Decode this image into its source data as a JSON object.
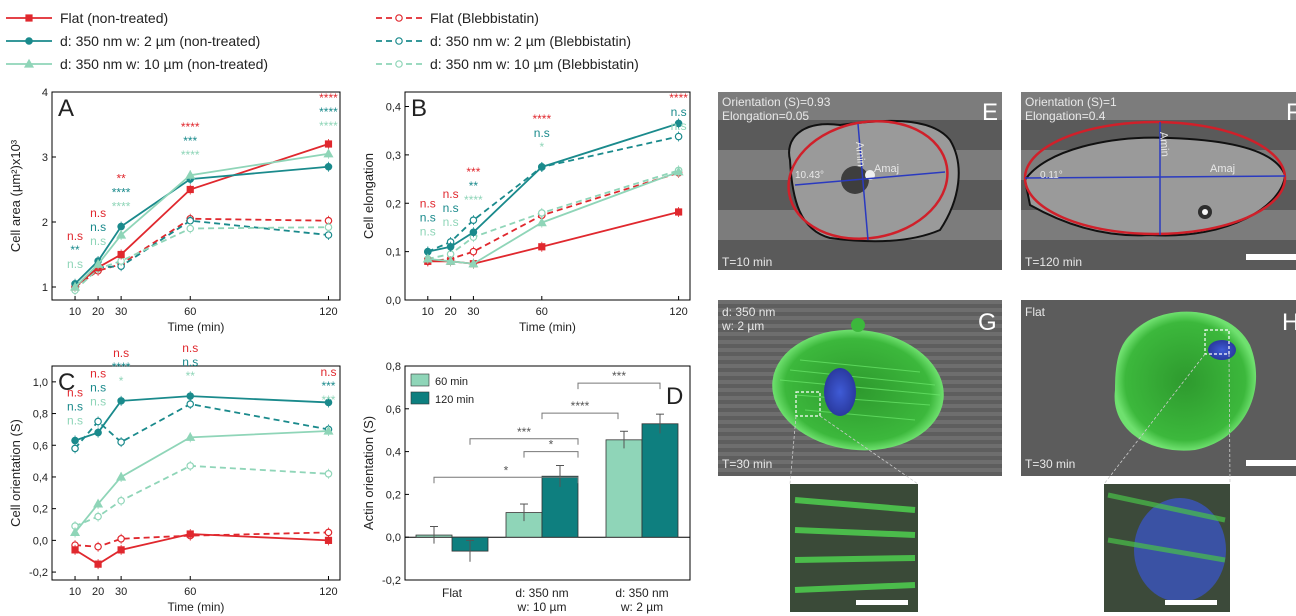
{
  "legend": {
    "entries": [
      {
        "label": "Flat (non-treated)",
        "color": "#e0282e",
        "dash": false,
        "marker": "square"
      },
      {
        "label": "d: 350 nm w: 2 µm (non-treated)",
        "color": "#1a8a8c",
        "dash": false,
        "marker": "circle"
      },
      {
        "label": "d: 350 nm w: 10 µm (non-treated)",
        "color": "#8fd5b8",
        "dash": false,
        "marker": "triangle"
      },
      {
        "label": "Flat (Blebbistatin)",
        "color": "#e0282e",
        "dash": true,
        "marker": "open-circle"
      },
      {
        "label": "d: 350 nm w: 2 µm (Blebbistatin)",
        "color": "#1a8a8c",
        "dash": true,
        "marker": "open-circle"
      },
      {
        "label": "d: 350 nm w: 10 µm (Blebbistatin)",
        "color": "#8fd5b8",
        "dash": true,
        "marker": "open-circle"
      }
    ]
  },
  "colors": {
    "red": "#e0282e",
    "teal": "#1a8a8c",
    "mint": "#8fd5b8",
    "dark_teal": "#0e7f7f",
    "light_green": "#8fd5b8"
  },
  "chart_data": [
    {
      "panel": "A",
      "type": "line",
      "xlabel": "Time (min)",
      "ylabel": "Cell area (µm²)x10³",
      "x": [
        10,
        20,
        30,
        60,
        120
      ],
      "xticks": [
        "10",
        "20",
        "30",
        "60",
        "120"
      ],
      "ylim": [
        0.8,
        4.0
      ],
      "yticks": [
        1,
        2,
        3,
        4
      ],
      "series": [
        {
          "name": "Flat (non-treated)",
          "values": [
            1.0,
            1.3,
            1.5,
            2.5,
            3.2
          ]
        },
        {
          "name": "d: 350 nm w: 2 µm (non-treated)",
          "values": [
            1.05,
            1.4,
            1.93,
            2.66,
            2.85
          ]
        },
        {
          "name": "d: 350 nm w: 10 µm (non-treated)",
          "values": [
            1.0,
            1.35,
            1.8,
            2.72,
            3.05
          ]
        },
        {
          "name": "Flat (Blebbistatin)",
          "values": [
            1.0,
            1.25,
            1.35,
            2.05,
            2.02
          ]
        },
        {
          "name": "d: 350 nm w: 2 µm (Blebbistatin)",
          "values": [
            1.0,
            1.3,
            1.32,
            2.02,
            1.8
          ]
        },
        {
          "name": "d: 350 nm w: 10 µm (Blebbistatin)",
          "values": [
            0.95,
            1.28,
            1.4,
            1.9,
            1.92
          ]
        }
      ],
      "annotations": [
        {
          "x": 10,
          "rows": [
            "n.s",
            "**",
            "n.s"
          ]
        },
        {
          "x": 20,
          "rows": [
            "n.s",
            "n.s",
            "n.s"
          ]
        },
        {
          "x": 30,
          "rows": [
            "**",
            "****",
            "****"
          ]
        },
        {
          "x": 60,
          "rows": [
            "****",
            "***",
            "****"
          ]
        },
        {
          "x": 120,
          "rows": [
            "****",
            "****",
            "****"
          ]
        }
      ]
    },
    {
      "panel": "B",
      "type": "line",
      "xlabel": "Time (min)",
      "ylabel": "Cell elongation",
      "x": [
        10,
        20,
        30,
        60,
        120
      ],
      "xticks": [
        "10",
        "20",
        "30",
        "60",
        "120"
      ],
      "ylim": [
        0.0,
        0.43
      ],
      "yticks": [
        0.0,
        0.1,
        0.2,
        0.3,
        0.4
      ],
      "ytick_labels": [
        "0,0",
        "0,1",
        "0,2",
        "0,3",
        "0,4"
      ],
      "series": [
        {
          "name": "Flat (non-treated)",
          "values": [
            0.08,
            0.08,
            0.075,
            0.11,
            0.182
          ]
        },
        {
          "name": "d: 350 nm w: 2 µm (non-treated)",
          "values": [
            0.1,
            0.11,
            0.14,
            0.275,
            0.365
          ]
        },
        {
          "name": "d: 350 nm w: 10 µm (non-treated)",
          "values": [
            0.085,
            0.08,
            0.075,
            0.16,
            0.265
          ]
        },
        {
          "name": "Flat (Blebbistatin)",
          "values": [
            0.08,
            0.085,
            0.1,
            0.175,
            0.263
          ]
        },
        {
          "name": "d: 350 nm w: 2 µm (Blebbistatin)",
          "values": [
            0.1,
            0.12,
            0.165,
            0.275,
            0.338
          ]
        },
        {
          "name": "d: 350 nm w: 10 µm (Blebbistatin)",
          "values": [
            0.085,
            0.095,
            0.13,
            0.18,
            0.268
          ]
        }
      ],
      "annotations": [
        {
          "x": 10,
          "rows": [
            "n.s",
            "n.s",
            "n.s"
          ]
        },
        {
          "x": 20,
          "rows": [
            "n.s",
            "n.s",
            "n.s"
          ]
        },
        {
          "x": 30,
          "rows": [
            "***",
            "**",
            "****"
          ]
        },
        {
          "x": 60,
          "rows": [
            "****",
            "n.s",
            "*"
          ]
        },
        {
          "x": 120,
          "rows": [
            "****",
            "n.s",
            "n.s"
          ]
        }
      ]
    },
    {
      "panel": "C",
      "type": "line",
      "xlabel": "Time (min)",
      "ylabel": "Cell orientation (S)",
      "x": [
        10,
        20,
        30,
        60,
        120
      ],
      "xticks": [
        "10",
        "20",
        "30",
        "60",
        "120"
      ],
      "ylim": [
        -0.25,
        1.1
      ],
      "yticks": [
        -0.2,
        0.0,
        0.2,
        0.4,
        0.6,
        0.8,
        1.0
      ],
      "ytick_labels": [
        "-0,2",
        "0,0",
        "0,2",
        "0,4",
        "0,6",
        "0,8",
        "1,0"
      ],
      "series": [
        {
          "name": "Flat (non-treated)",
          "values": [
            -0.06,
            -0.15,
            -0.06,
            0.04,
            0.0
          ]
        },
        {
          "name": "d: 350 nm w: 2 µm (non-treated)",
          "values": [
            0.63,
            0.68,
            0.88,
            0.91,
            0.87
          ]
        },
        {
          "name": "d: 350 nm w: 10 µm (non-treated)",
          "values": [
            0.05,
            0.23,
            0.4,
            0.65,
            0.69
          ]
        },
        {
          "name": "Flat (Blebbistatin)",
          "values": [
            -0.03,
            -0.04,
            0.01,
            0.03,
            0.05
          ]
        },
        {
          "name": "d: 350 nm w: 2 µm (Blebbistatin)",
          "values": [
            0.58,
            0.75,
            0.62,
            0.86,
            0.7
          ]
        },
        {
          "name": "d: 350 nm w: 10 µm (Blebbistatin)",
          "values": [
            0.09,
            0.15,
            0.25,
            0.47,
            0.42
          ]
        }
      ],
      "annotations": [
        {
          "x": 10,
          "rows": [
            "n.s",
            "n.s",
            "n.s"
          ]
        },
        {
          "x": 20,
          "rows": [
            "n.s",
            "n.s",
            "n.s"
          ]
        },
        {
          "x": 30,
          "rows": [
            "n.s",
            "****",
            "*"
          ]
        },
        {
          "x": 60,
          "rows": [
            "n.s",
            "n.s",
            "**"
          ]
        },
        {
          "x": 120,
          "rows": [
            "n.s",
            "***",
            "***"
          ]
        }
      ]
    },
    {
      "panel": "D",
      "type": "bar",
      "xlabel": "",
      "ylabel": "Actin orientation (S)",
      "categories": [
        "Flat",
        "d: 350 nm\nw: 10 µm",
        "d: 350 nm\nw: 2 µm"
      ],
      "category_lines": [
        [
          "Flat"
        ],
        [
          "d: 350 nm",
          "w: 10 µm"
        ],
        [
          "d: 350 nm",
          "w: 2 µm"
        ]
      ],
      "ylim": [
        -0.2,
        0.8
      ],
      "yticks": [
        -0.2,
        0.0,
        0.2,
        0.4,
        0.6,
        0.8
      ],
      "ytick_labels": [
        "-0,2",
        "0,0",
        "0,2",
        "0,4",
        "0,6",
        "0,8"
      ],
      "series": [
        {
          "name": "60 min",
          "values": [
            0.01,
            0.115,
            0.455
          ],
          "errors": [
            0.04,
            0.04,
            0.04
          ]
        },
        {
          "name": "120 min",
          "values": [
            -0.065,
            0.285,
            0.53
          ],
          "errors": [
            0.05,
            0.05,
            0.045
          ]
        }
      ],
      "legend": "top-left",
      "significance": [
        "*",
        "*",
        "***",
        "****",
        "***"
      ]
    }
  ],
  "images": {
    "E": {
      "letter": "E",
      "orientation": "Orientation (S)=0.93",
      "elongation": "Elongation=0.05",
      "time": "T=10 min",
      "angle": "10.43°",
      "amin": "Amin",
      "amaj": "Amaj"
    },
    "F": {
      "letter": "F",
      "orientation": "Orientation (S)=1",
      "elongation": "Elongation=0.4",
      "time": "T=120 min",
      "angle": "0.11°",
      "amin": "Amin",
      "amaj": "Amaj"
    },
    "G": {
      "letter": "G",
      "line1": "d: 350 nm",
      "line2": "w: 2 µm",
      "time": "T=30 min"
    },
    "H": {
      "letter": "H",
      "line1": "Flat",
      "time": "T=30 min"
    }
  }
}
